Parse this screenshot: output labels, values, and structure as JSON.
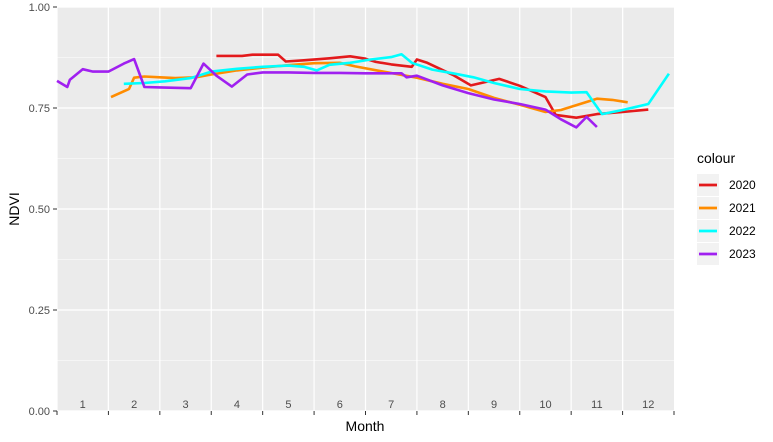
{
  "chart_data": {
    "type": "line",
    "xlabel": "Month",
    "ylabel": "NDVI",
    "ylim": [
      0,
      1
    ],
    "y_ticks": [
      "0.00",
      "0.25",
      "0.50",
      "0.75",
      "1.00"
    ],
    "xlim": [
      0.5,
      12.5
    ],
    "month_labels": [
      "1",
      "2",
      "3",
      "4",
      "5",
      "6",
      "7",
      "8",
      "9",
      "10",
      "11",
      "12"
    ],
    "legend_title": "colour",
    "legend_position": "right",
    "grid": true,
    "background": "#ebebeb",
    "series": [
      {
        "name": "2020",
        "color": "#e31a1c",
        "points": [
          [
            3.6,
            0.879
          ],
          [
            4.1,
            0.879
          ],
          [
            4.3,
            0.882
          ],
          [
            4.8,
            0.882
          ],
          [
            4.95,
            0.865
          ],
          [
            5.3,
            0.868
          ],
          [
            5.8,
            0.873
          ],
          [
            6.2,
            0.878
          ],
          [
            6.5,
            0.872
          ],
          [
            6.7,
            0.864
          ],
          [
            7.0,
            0.858
          ],
          [
            7.4,
            0.852
          ],
          [
            7.5,
            0.87
          ],
          [
            7.7,
            0.862
          ],
          [
            8.2,
            0.832
          ],
          [
            8.55,
            0.806
          ],
          [
            9.1,
            0.822
          ],
          [
            9.5,
            0.805
          ],
          [
            10.0,
            0.777
          ],
          [
            10.2,
            0.733
          ],
          [
            10.6,
            0.726
          ],
          [
            11.0,
            0.735
          ],
          [
            11.5,
            0.74
          ],
          [
            12.0,
            0.746
          ]
        ]
      },
      {
        "name": "2021",
        "color": "#ff8c00",
        "points": [
          [
            1.55,
            0.777
          ],
          [
            1.9,
            0.797
          ],
          [
            2.0,
            0.825
          ],
          [
            2.2,
            0.828
          ],
          [
            2.5,
            0.826
          ],
          [
            2.8,
            0.824
          ],
          [
            3.2,
            0.826
          ],
          [
            3.5,
            0.833
          ],
          [
            4.0,
            0.843
          ],
          [
            4.5,
            0.85
          ],
          [
            5.0,
            0.856
          ],
          [
            5.5,
            0.861
          ],
          [
            6.0,
            0.862
          ],
          [
            6.3,
            0.853
          ],
          [
            6.8,
            0.841
          ],
          [
            7.5,
            0.825
          ],
          [
            8.0,
            0.81
          ],
          [
            8.5,
            0.797
          ],
          [
            9.0,
            0.775
          ],
          [
            9.5,
            0.758
          ],
          [
            10.0,
            0.74
          ],
          [
            10.3,
            0.745
          ],
          [
            11.0,
            0.773
          ],
          [
            11.3,
            0.77
          ],
          [
            11.6,
            0.764
          ]
        ]
      },
      {
        "name": "2022",
        "color": "#00ffff",
        "points": [
          [
            1.8,
            0.81
          ],
          [
            2.2,
            0.812
          ],
          [
            2.6,
            0.816
          ],
          [
            3.1,
            0.824
          ],
          [
            3.5,
            0.84
          ],
          [
            4.0,
            0.847
          ],
          [
            4.5,
            0.852
          ],
          [
            5.0,
            0.855
          ],
          [
            5.3,
            0.852
          ],
          [
            5.55,
            0.843
          ],
          [
            5.8,
            0.857
          ],
          [
            6.2,
            0.862
          ],
          [
            6.6,
            0.87
          ],
          [
            7.0,
            0.876
          ],
          [
            7.2,
            0.883
          ],
          [
            7.4,
            0.862
          ],
          [
            7.8,
            0.845
          ],
          [
            8.2,
            0.836
          ],
          [
            8.6,
            0.826
          ],
          [
            9.0,
            0.812
          ],
          [
            9.5,
            0.797
          ],
          [
            10.0,
            0.791
          ],
          [
            10.5,
            0.788
          ],
          [
            10.8,
            0.789
          ],
          [
            11.1,
            0.735
          ],
          [
            11.5,
            0.745
          ],
          [
            12.0,
            0.76
          ],
          [
            12.4,
            0.835
          ]
        ]
      },
      {
        "name": "2023",
        "color": "#a020f0",
        "points": [
          [
            0.5,
            0.817
          ],
          [
            0.7,
            0.802
          ],
          [
            0.75,
            0.82
          ],
          [
            1.0,
            0.846
          ],
          [
            1.2,
            0.84
          ],
          [
            1.5,
            0.84
          ],
          [
            1.8,
            0.86
          ],
          [
            2.0,
            0.871
          ],
          [
            2.2,
            0.802
          ],
          [
            2.5,
            0.801
          ],
          [
            3.1,
            0.799
          ],
          [
            3.35,
            0.86
          ],
          [
            3.6,
            0.83
          ],
          [
            3.9,
            0.803
          ],
          [
            4.2,
            0.833
          ],
          [
            4.5,
            0.838
          ],
          [
            5.0,
            0.838
          ],
          [
            5.5,
            0.837
          ],
          [
            6.0,
            0.837
          ],
          [
            6.5,
            0.836
          ],
          [
            7.0,
            0.836
          ],
          [
            7.2,
            0.836
          ],
          [
            7.3,
            0.826
          ],
          [
            7.5,
            0.83
          ],
          [
            8.0,
            0.806
          ],
          [
            8.5,
            0.787
          ],
          [
            9.0,
            0.771
          ],
          [
            9.5,
            0.76
          ],
          [
            10.0,
            0.746
          ],
          [
            10.3,
            0.722
          ],
          [
            10.6,
            0.702
          ],
          [
            10.8,
            0.728
          ],
          [
            11.0,
            0.703
          ]
        ]
      }
    ]
  }
}
